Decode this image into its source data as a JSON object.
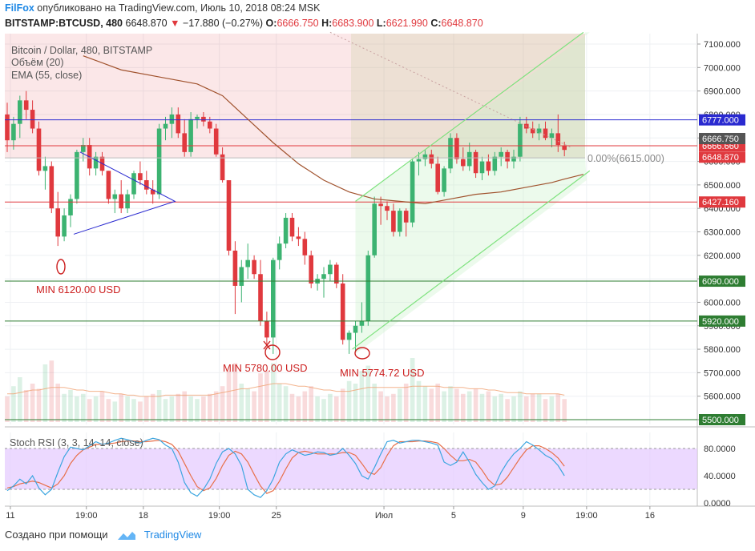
{
  "header": {
    "brand": "FilFox",
    "published_text": "опубликовано на TradingView.com, Июль 10, 2018 08:24 MSK",
    "symbol": "BITSTAMP:BTCUSD, 480",
    "last_price": "6648.870",
    "change_arrow": "▼",
    "change": "−17.880 (−0.27%)",
    "o_label": "O:",
    "o_value": "6666.750",
    "h_label": "H:",
    "h_value": "6683.900",
    "l_label": "L:",
    "l_value": "6621.990",
    "c_label": "C:",
    "c_value": "6648.870"
  },
  "legend": {
    "title": "Bitcoin / Dollar, 480, BITSTAMP",
    "volume": "Объём (20)",
    "ema": "EMA (55, close)",
    "stoch": "Stoch RSI (3, 3, 14, 14, close)"
  },
  "colors": {
    "up": "#3cb371",
    "down": "#e0393e",
    "ema": "#a0522d",
    "blue_line": "#2a2ad0",
    "green_line": "#2e7d32",
    "red_line": "#e0393e",
    "channel": "#7ee27e",
    "stoch_k": "#3ca6e0",
    "stoch_d": "#e8704a",
    "stoch_band": "#e6ccff"
  },
  "chart_data": {
    "type": "candlestick",
    "symbol": "BITSTAMP:BTCUSD",
    "timeframe": "480",
    "ylim": [
      5500,
      7150
    ],
    "y_ticks": [
      "7100.000",
      "7000.000",
      "6900.000",
      "6800.000",
      "6700.000",
      "6600.000",
      "6500.000",
      "6400.000",
      "6300.000",
      "6200.000",
      "6100.000",
      "6000.000",
      "5900.000",
      "5800.000",
      "5700.000",
      "5600.000",
      "5500.000"
    ],
    "x_tick_labels": [
      "11",
      "19:00",
      "18",
      "19:00",
      "25",
      "Июл",
      "5",
      "9",
      "19:00",
      "16"
    ],
    "x_tick_bars": [
      0.5,
      12.5,
      21.5,
      33.5,
      42.5,
      59.5,
      70.5,
      81.5,
      91.5,
      101.5
    ],
    "candles": [
      [
        6800,
        6850,
        6640,
        6690
      ],
      [
        6690,
        6790,
        6650,
        6760
      ],
      [
        6760,
        6880,
        6700,
        6860
      ],
      [
        6860,
        6900,
        6780,
        6820
      ],
      [
        6820,
        6860,
        6720,
        6740
      ],
      [
        6740,
        6770,
        6540,
        6560
      ],
      [
        6560,
        6620,
        6480,
        6580
      ],
      [
        6580,
        6600,
        6380,
        6400
      ],
      [
        6400,
        6470,
        6240,
        6280
      ],
      [
        6280,
        6400,
        6260,
        6370
      ],
      [
        6370,
        6460,
        6320,
        6440
      ],
      [
        6440,
        6650,
        6420,
        6640
      ],
      [
        6640,
        6700,
        6600,
        6670
      ],
      [
        6670,
        6700,
        6540,
        6570
      ],
      [
        6570,
        6640,
        6540,
        6620
      ],
      [
        6620,
        6640,
        6540,
        6560
      ],
      [
        6560,
        6560,
        6420,
        6440
      ],
      [
        6440,
        6480,
        6380,
        6460
      ],
      [
        6460,
        6520,
        6380,
        6400
      ],
      [
        6400,
        6480,
        6380,
        6460
      ],
      [
        6460,
        6560,
        6440,
        6550
      ],
      [
        6550,
        6600,
        6500,
        6520
      ],
      [
        6520,
        6560,
        6460,
        6480
      ],
      [
        6480,
        6520,
        6420,
        6460
      ],
      [
        6460,
        6760,
        6440,
        6740
      ],
      [
        6740,
        6790,
        6690,
        6760
      ],
      [
        6760,
        6830,
        6700,
        6800
      ],
      [
        6800,
        6830,
        6700,
        6720
      ],
      [
        6720,
        6780,
        6620,
        6640
      ],
      [
        6640,
        6810,
        6620,
        6780
      ],
      [
        6780,
        6800,
        6740,
        6790
      ],
      [
        6790,
        6810,
        6750,
        6770
      ],
      [
        6770,
        6790,
        6720,
        6740
      ],
      [
        6740,
        6760,
        6620,
        6630
      ],
      [
        6630,
        6660,
        6510,
        6520
      ],
      [
        6520,
        6520,
        6200,
        6220
      ],
      [
        6220,
        6260,
        5950,
        6070
      ],
      [
        6070,
        6180,
        6000,
        6150
      ],
      [
        6150,
        6250,
        6100,
        6180
      ],
      [
        6180,
        6200,
        6100,
        6120
      ],
      [
        6120,
        6180,
        5900,
        5920
      ],
      [
        5920,
        5960,
        5820,
        5850
      ],
      [
        5850,
        6190,
        5780,
        6180
      ],
      [
        6180,
        6280,
        6140,
        6250
      ],
      [
        6250,
        6380,
        6230,
        6360
      ],
      [
        6360,
        6380,
        6260,
        6280
      ],
      [
        6280,
        6320,
        6240,
        6270
      ],
      [
        6270,
        6300,
        6160,
        6200
      ],
      [
        6200,
        6220,
        6060,
        6080
      ],
      [
        6080,
        6120,
        6050,
        6100
      ],
      [
        6100,
        6150,
        6020,
        6120
      ],
      [
        6120,
        6180,
        6090,
        6160
      ],
      [
        6160,
        6170,
        6060,
        6080
      ],
      [
        6080,
        6120,
        5820,
        5840
      ],
      [
        5840,
        5880,
        5780,
        5870
      ],
      [
        5870,
        5920,
        5790,
        5900
      ],
      [
        5900,
        6000,
        5870,
        5920
      ],
      [
        5920,
        6220,
        5900,
        6200
      ],
      [
        6200,
        6450,
        6190,
        6420
      ],
      [
        6420,
        6450,
        6330,
        6410
      ],
      [
        6410,
        6430,
        6350,
        6390
      ],
      [
        6390,
        6420,
        6280,
        6300
      ],
      [
        6300,
        6400,
        6280,
        6390
      ],
      [
        6390,
        6400,
        6280,
        6340
      ],
      [
        6340,
        6610,
        6320,
        6600
      ],
      [
        6600,
        6640,
        6540,
        6610
      ],
      [
        6610,
        6650,
        6580,
        6630
      ],
      [
        6630,
        6650,
        6570,
        6590
      ],
      [
        6590,
        6620,
        6460,
        6470
      ],
      [
        6470,
        6580,
        6450,
        6570
      ],
      [
        6570,
        6720,
        6550,
        6700
      ],
      [
        6700,
        6720,
        6590,
        6610
      ],
      [
        6610,
        6660,
        6560,
        6580
      ],
      [
        6580,
        6680,
        6560,
        6640
      ],
      [
        6640,
        6650,
        6530,
        6550
      ],
      [
        6550,
        6620,
        6520,
        6600
      ],
      [
        6600,
        6630,
        6540,
        6560
      ],
      [
        6560,
        6640,
        6540,
        6620
      ],
      [
        6620,
        6660,
        6580,
        6640
      ],
      [
        6640,
        6650,
        6570,
        6600
      ],
      [
        6600,
        6650,
        6570,
        6620
      ],
      [
        6620,
        6790,
        6600,
        6760
      ],
      [
        6760,
        6790,
        6720,
        6740
      ],
      [
        6740,
        6770,
        6700,
        6720
      ],
      [
        6720,
        6760,
        6690,
        6740
      ],
      [
        6740,
        6770,
        6690,
        6700
      ],
      [
        6700,
        6740,
        6660,
        6720
      ],
      [
        6720,
        6800,
        6640,
        6670
      ],
      [
        6667,
        6684,
        6622,
        6649
      ]
    ],
    "volume": [
      20,
      28,
      35,
      25,
      30,
      26,
      45,
      48,
      30,
      22,
      25,
      20,
      22,
      18,
      20,
      24,
      18,
      16,
      22,
      20,
      18,
      16,
      20,
      22,
      25,
      18,
      20,
      22,
      24,
      20,
      18,
      20,
      22,
      24,
      28,
      40,
      46,
      30,
      26,
      24,
      38,
      40,
      46,
      30,
      28,
      22,
      20,
      24,
      28,
      20,
      18,
      22,
      20,
      26,
      32,
      30,
      40,
      44,
      30,
      24,
      20,
      22,
      26,
      30,
      50,
      32,
      28,
      26,
      30,
      24,
      28,
      26,
      22,
      24,
      26,
      22,
      24,
      20,
      22,
      18,
      20,
      24,
      20,
      22,
      22,
      18,
      20,
      22,
      18
    ],
    "volume_ma": [
      22,
      22,
      23,
      24,
      25,
      25,
      26,
      27,
      27,
      27,
      26,
      25,
      25,
      24,
      24,
      24,
      23,
      22,
      22,
      21,
      21,
      20,
      20,
      20,
      20,
      21,
      21,
      21,
      21,
      21,
      21,
      21,
      21,
      22,
      23,
      24,
      25,
      26,
      26,
      27,
      28,
      29,
      30,
      30,
      30,
      29,
      28,
      28,
      27,
      26,
      25,
      25,
      24,
      24,
      24,
      25,
      26,
      27,
      27,
      27,
      27,
      27,
      27,
      27,
      28,
      28,
      28,
      28,
      28,
      27,
      27,
      27,
      27,
      26,
      26,
      26,
      25,
      25,
      24,
      23,
      23,
      23,
      22,
      22,
      22,
      22,
      22,
      22,
      21
    ],
    "ema55_points": [
      [
        12,
        7050
      ],
      [
        18,
        6990
      ],
      [
        24,
        6960
      ],
      [
        30,
        6930
      ],
      [
        34,
        6880
      ],
      [
        38,
        6780
      ],
      [
        42,
        6680
      ],
      [
        46,
        6590
      ],
      [
        50,
        6520
      ],
      [
        54,
        6470
      ],
      [
        58,
        6440
      ],
      [
        62,
        6430
      ],
      [
        66,
        6420
      ],
      [
        70,
        6440
      ],
      [
        74,
        6460
      ],
      [
        78,
        6470
      ],
      [
        82,
        6490
      ],
      [
        86,
        6510
      ],
      [
        88,
        6525
      ],
      [
        91,
        6545
      ]
    ],
    "stoch_k": [
      18,
      25,
      35,
      28,
      40,
      22,
      12,
      20,
      45,
      68,
      82,
      80,
      78,
      84,
      90,
      86,
      88,
      92,
      95,
      93,
      90,
      88,
      92,
      95,
      93,
      85,
      80,
      60,
      30,
      15,
      10,
      20,
      35,
      58,
      75,
      80,
      72,
      55,
      20,
      12,
      8,
      18,
      35,
      60,
      72,
      78,
      74,
      70,
      72,
      75,
      74,
      70,
      72,
      80,
      70,
      58,
      40,
      35,
      52,
      72,
      90,
      92,
      88,
      90,
      92,
      92,
      90,
      88,
      85,
      60,
      55,
      60,
      75,
      60,
      42,
      30,
      20,
      25,
      45,
      60,
      72,
      80,
      90,
      85,
      78,
      70,
      65,
      55,
      40
    ],
    "stoch_d": [
      22,
      24,
      28,
      30,
      32,
      30,
      26,
      22,
      28,
      40,
      58,
      70,
      78,
      82,
      86,
      86,
      87,
      88,
      90,
      91,
      91,
      90,
      90,
      91,
      92,
      90,
      86,
      76,
      58,
      40,
      24,
      18,
      22,
      36,
      55,
      70,
      76,
      72,
      60,
      42,
      25,
      14,
      18,
      32,
      50,
      66,
      74,
      76,
      74,
      72,
      72,
      72,
      72,
      74,
      74,
      70,
      58,
      45,
      42,
      52,
      70,
      84,
      90,
      90,
      90,
      91,
      91,
      90,
      88,
      80,
      70,
      62,
      62,
      64,
      60,
      48,
      34,
      26,
      28,
      38,
      52,
      66,
      78,
      84,
      84,
      80,
      74,
      66,
      54
    ],
    "horizontal_lines": [
      {
        "price": 6777,
        "color_key": "blue_line",
        "label": "6777.000"
      },
      {
        "price": 6666.66,
        "color_key": "red_line",
        "label": "6666.660"
      },
      {
        "price": 6427.16,
        "color_key": "red_line",
        "label": "6427.160"
      },
      {
        "price": 6090,
        "color_key": "green_line",
        "label": "6090.000"
      },
      {
        "price": 5920,
        "color_key": "green_line",
        "label": "5920.000"
      },
      {
        "price": 5500,
        "color_key": "green_line",
        "label": "5500.000"
      }
    ],
    "price_labels": [
      {
        "label": "6666.750",
        "color": "#555555"
      },
      {
        "label": "6648.870",
        "color": "#e0393e"
      }
    ],
    "fib_label": "0.00%(6615.000)",
    "annotations": [
      "MIN 6120.00 USD",
      "MIN 5780.00 USD",
      "MIN 5774.72 USD"
    ],
    "stoch_ticks": [
      "80.0000",
      "40.0000",
      "0.0000"
    ]
  },
  "footer": {
    "created_with": "Создано при помощи",
    "tradingview": "TradingView"
  }
}
